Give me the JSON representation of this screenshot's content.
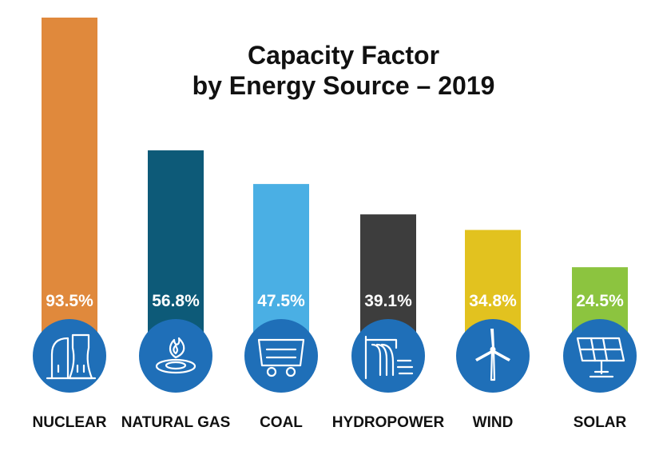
{
  "chart_data": {
    "type": "bar",
    "title": "Capacity Factor by Energy Source – 2019",
    "title_lines": [
      "Capacity Factor",
      "by Energy Source – 2019"
    ],
    "categories": [
      "NUCLEAR",
      "NATURAL GAS",
      "COAL",
      "HYDROPOWER",
      "WIND",
      "SOLAR"
    ],
    "values": [
      93.5,
      56.8,
      47.5,
      39.1,
      34.8,
      24.5
    ],
    "value_labels": [
      "93.5%",
      "56.8%",
      "47.5%",
      "39.1%",
      "34.8%",
      "24.5%"
    ],
    "bar_colors": [
      "#e0893c",
      "#0d5a78",
      "#4aafe4",
      "#3d3d3d",
      "#e2c21f",
      "#8cc43f"
    ],
    "icon_names": [
      "nuclear-cooling-tower-icon",
      "gas-flame-icon",
      "coal-cart-icon",
      "hydro-dam-icon",
      "wind-turbine-icon",
      "solar-panel-icon"
    ],
    "icon_circle_color": "#1f6fb8",
    "xlabel": "",
    "ylabel": "",
    "ylim": [
      0,
      100
    ],
    "grid": false,
    "legend": "none"
  }
}
